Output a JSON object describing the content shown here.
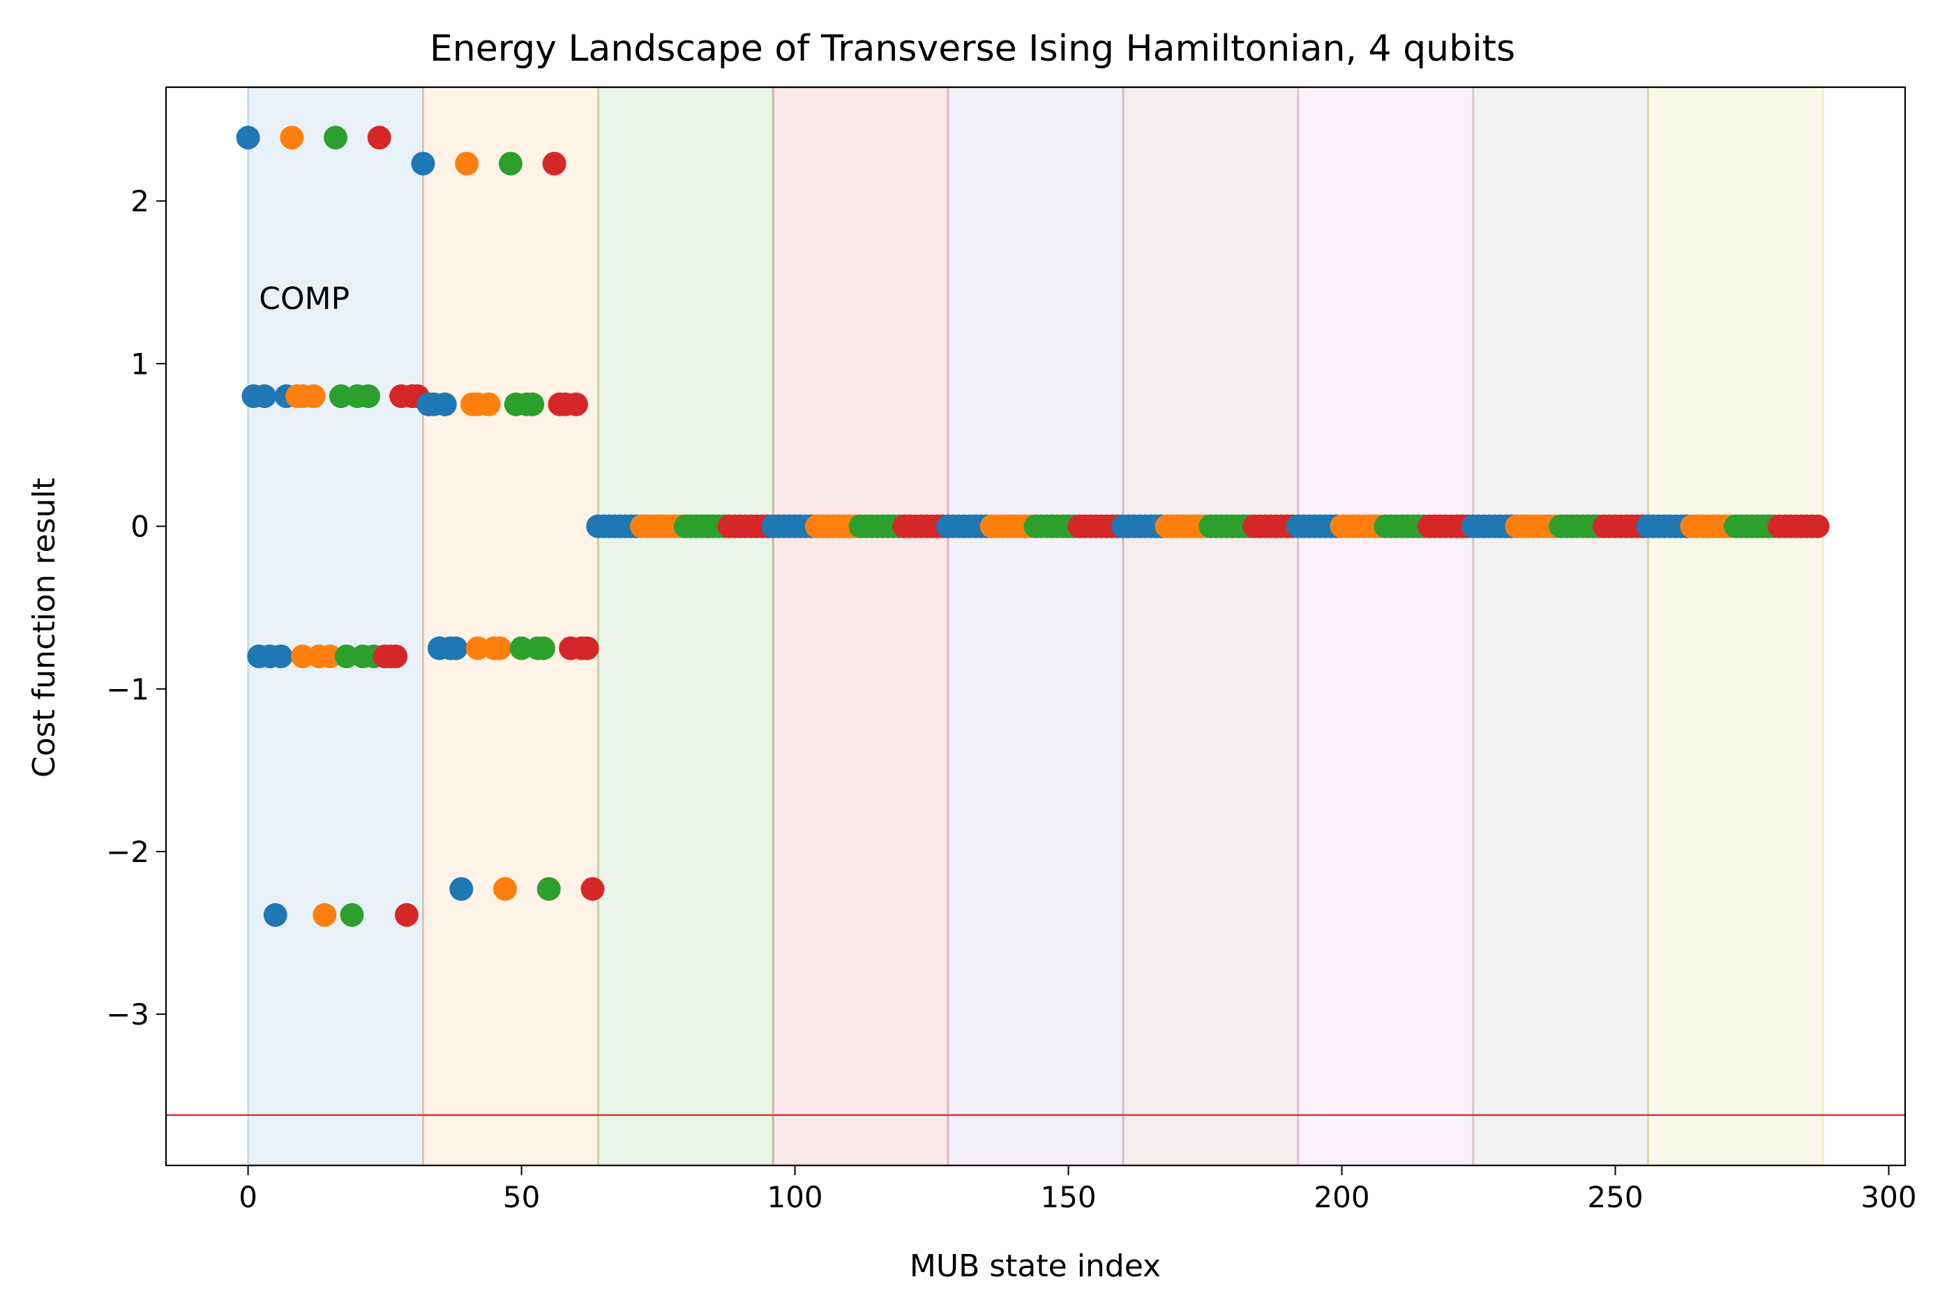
{
  "chart_data": {
    "type": "scatter",
    "title": "Energy Landscape of Transverse Ising Hamiltonian, 4 qubits",
    "xlabel": "MUB state index",
    "ylabel": "Cost function result",
    "xlim": [
      -15,
      303
    ],
    "ylim": [
      -3.93,
      2.7
    ],
    "xticks": [
      0,
      50,
      100,
      150,
      200,
      250,
      300
    ],
    "yticks": [
      -3,
      -2,
      -1,
      0,
      1,
      2
    ],
    "grid": false,
    "legend": "none",
    "annotation": {
      "text": "COMP",
      "x": 2,
      "y": 1.4
    },
    "reference_line": {
      "y": -3.62,
      "color": "#d62728"
    },
    "colors": {
      "blue": "#1f77b4",
      "orange": "#ff7f0e",
      "green": "#2ca02c",
      "red": "#d62728"
    },
    "bases": [
      {
        "start": 0,
        "end": 32,
        "color": "#1f77b4"
      },
      {
        "start": 32,
        "end": 64,
        "color": "#ff7f0e"
      },
      {
        "start": 64,
        "end": 96,
        "color": "#2ca02c"
      },
      {
        "start": 96,
        "end": 128,
        "color": "#d62728"
      },
      {
        "start": 128,
        "end": 160,
        "color": "#9467bd"
      },
      {
        "start": 160,
        "end": 192,
        "color": "#8c564b"
      },
      {
        "start": 192,
        "end": 224,
        "color": "#e377c2"
      },
      {
        "start": 224,
        "end": 256,
        "color": "#7f7f7f"
      },
      {
        "start": 256,
        "end": 288,
        "color": "#bcbd22"
      }
    ],
    "points_explicit": [
      [
        0,
        2.39,
        "blue"
      ],
      [
        8,
        2.39,
        "orange"
      ],
      [
        16,
        2.39,
        "green"
      ],
      [
        24,
        2.39,
        "red"
      ],
      [
        32,
        2.23,
        "blue"
      ],
      [
        40,
        2.23,
        "orange"
      ],
      [
        48,
        2.23,
        "green"
      ],
      [
        56,
        2.23,
        "red"
      ],
      [
        1,
        0.8,
        "blue"
      ],
      [
        3,
        0.8,
        "blue"
      ],
      [
        7,
        0.8,
        "blue"
      ],
      [
        9,
        0.8,
        "orange"
      ],
      [
        10,
        0.8,
        "orange"
      ],
      [
        12,
        0.8,
        "orange"
      ],
      [
        17,
        0.8,
        "green"
      ],
      [
        20,
        0.8,
        "green"
      ],
      [
        22,
        0.8,
        "green"
      ],
      [
        28,
        0.8,
        "red"
      ],
      [
        30,
        0.8,
        "red"
      ],
      [
        31,
        0.8,
        "red"
      ],
      [
        33,
        0.75,
        "blue"
      ],
      [
        34,
        0.75,
        "blue"
      ],
      [
        36,
        0.75,
        "blue"
      ],
      [
        41,
        0.75,
        "orange"
      ],
      [
        42,
        0.75,
        "orange"
      ],
      [
        44,
        0.75,
        "orange"
      ],
      [
        49,
        0.75,
        "green"
      ],
      [
        51,
        0.75,
        "green"
      ],
      [
        52,
        0.75,
        "green"
      ],
      [
        57,
        0.75,
        "red"
      ],
      [
        58,
        0.75,
        "red"
      ],
      [
        60,
        0.75,
        "red"
      ],
      [
        2,
        -0.8,
        "blue"
      ],
      [
        4,
        -0.8,
        "blue"
      ],
      [
        6,
        -0.8,
        "blue"
      ],
      [
        10,
        -0.8,
        "orange"
      ],
      [
        13,
        -0.8,
        "orange"
      ],
      [
        15,
        -0.8,
        "orange"
      ],
      [
        18,
        -0.8,
        "green"
      ],
      [
        21,
        -0.8,
        "green"
      ],
      [
        23,
        -0.8,
        "green"
      ],
      [
        25,
        -0.8,
        "red"
      ],
      [
        26,
        -0.8,
        "red"
      ],
      [
        27,
        -0.8,
        "red"
      ],
      [
        35,
        -0.75,
        "blue"
      ],
      [
        37,
        -0.75,
        "blue"
      ],
      [
        38,
        -0.75,
        "blue"
      ],
      [
        42,
        -0.75,
        "orange"
      ],
      [
        45,
        -0.75,
        "orange"
      ],
      [
        46,
        -0.75,
        "orange"
      ],
      [
        50,
        -0.75,
        "green"
      ],
      [
        53,
        -0.75,
        "green"
      ],
      [
        54,
        -0.75,
        "green"
      ],
      [
        59,
        -0.75,
        "red"
      ],
      [
        61,
        -0.75,
        "red"
      ],
      [
        62,
        -0.75,
        "red"
      ],
      [
        5,
        -2.39,
        "blue"
      ],
      [
        14,
        -2.39,
        "orange"
      ],
      [
        19,
        -2.39,
        "green"
      ],
      [
        29,
        -2.39,
        "red"
      ],
      [
        39,
        -2.23,
        "blue"
      ],
      [
        47,
        -2.23,
        "orange"
      ],
      [
        55,
        -2.23,
        "green"
      ],
      [
        63,
        -2.23,
        "red"
      ]
    ],
    "zero_series": {
      "x_start": 64,
      "x_end": 287,
      "y": 0,
      "color_cycle": [
        "blue",
        "orange",
        "green",
        "red"
      ],
      "run_length": 8
    }
  }
}
